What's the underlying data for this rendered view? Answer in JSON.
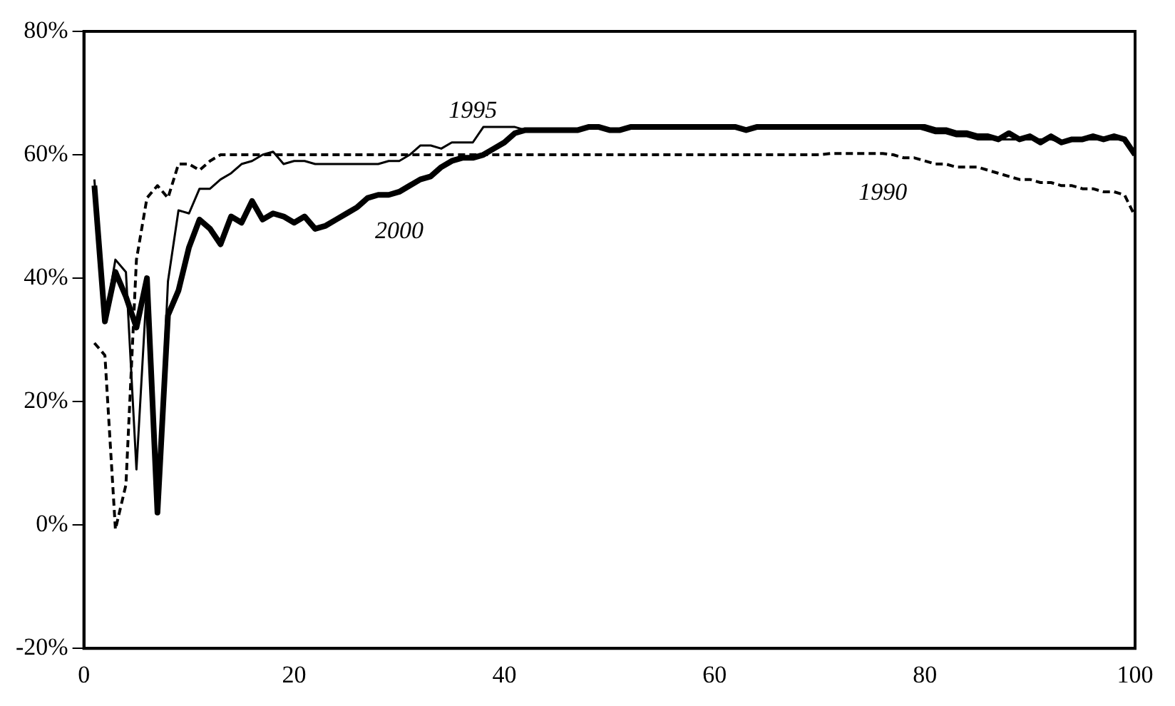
{
  "chart_data": {
    "type": "line",
    "x": [
      1,
      2,
      3,
      4,
      5,
      6,
      7,
      8,
      9,
      10,
      11,
      12,
      13,
      14,
      15,
      16,
      17,
      18,
      19,
      20,
      21,
      22,
      23,
      24,
      25,
      26,
      27,
      28,
      29,
      30,
      31,
      32,
      33,
      34,
      35,
      36,
      37,
      38,
      39,
      40,
      41,
      42,
      43,
      44,
      45,
      46,
      47,
      48,
      49,
      50,
      51,
      52,
      53,
      54,
      55,
      56,
      57,
      58,
      59,
      60,
      61,
      62,
      63,
      64,
      65,
      66,
      67,
      68,
      69,
      70,
      71,
      72,
      73,
      74,
      75,
      76,
      77,
      78,
      79,
      80,
      81,
      82,
      83,
      84,
      85,
      86,
      87,
      88,
      89,
      90,
      91,
      92,
      93,
      94,
      95,
      96,
      97,
      98,
      99,
      100
    ],
    "series": [
      {
        "name": "2000",
        "color": "#000000",
        "line_style": "solid",
        "values": [
          55,
          33,
          41,
          37,
          32,
          40,
          2,
          34,
          38,
          45,
          49.5,
          48,
          45.5,
          50,
          49,
          52.5,
          49.5,
          50.5,
          50,
          49,
          50,
          48,
          48.5,
          49.5,
          50.5,
          51.5,
          53,
          53.5,
          53.5,
          54,
          55,
          56,
          56.5,
          58,
          59,
          59.5,
          59.5,
          60,
          61,
          62,
          63.5,
          64,
          64,
          64,
          64,
          64,
          64,
          64.5,
          64.5,
          64,
          64,
          64.5,
          64.5,
          64.5,
          64.5,
          64.5,
          64.5,
          64.5,
          64.5,
          64.5,
          64.5,
          64.5,
          64,
          64.5,
          64.5,
          64.5,
          64.5,
          64.5,
          64.5,
          64.5,
          64.5,
          64.5,
          64.5,
          64.5,
          64.5,
          64.5,
          64.5,
          64.5,
          64.5,
          64.5,
          64,
          64,
          63.5,
          63.5,
          63,
          63,
          62.5,
          63.5,
          62.5,
          63,
          62,
          63,
          62,
          62.5,
          62.5,
          63,
          62.5,
          63,
          62.5,
          60
        ]
      },
      {
        "name": "1995",
        "color": "#000000",
        "line_style": "solid",
        "values": [
          56,
          33,
          43,
          41,
          9,
          39,
          2.5,
          39.5,
          51,
          50.5,
          54.5,
          54.5,
          56,
          57,
          58.5,
          59,
          60,
          60.5,
          58.5,
          59,
          59,
          58.5,
          58.5,
          58.5,
          58.5,
          58.5,
          58.5,
          58.5,
          59,
          59,
          60,
          61.5,
          61.5,
          61,
          62,
          62,
          62,
          64.5,
          64.5,
          64.5,
          64.5,
          64,
          64,
          64,
          64,
          64,
          64,
          64.5,
          64.5,
          64,
          64,
          64.5,
          64.5,
          64.5,
          64.5,
          64.5,
          64.5,
          64.5,
          64.5,
          64.5,
          64.5,
          64.5,
          64,
          64.5,
          64.5,
          64.5,
          64.5,
          64.5,
          64.5,
          64.5,
          64.5,
          64.5,
          64.5,
          64.5,
          64.5,
          64.5,
          64.5,
          64.5,
          64.5,
          64,
          63.5,
          63.5,
          63,
          63,
          62.5,
          62.5,
          62.5,
          62.5,
          62.5,
          62.5,
          62.5,
          62.5,
          62,
          62.5,
          62.5,
          62.5,
          62.5,
          62.5,
          62.5,
          60
        ]
      },
      {
        "name": "1990",
        "color": "#000000",
        "line_style": "dashed",
        "values": [
          29.5,
          27.5,
          -0.7,
          6.5,
          43,
          53,
          55,
          53,
          58.5,
          58.5,
          57.5,
          59,
          60,
          60,
          60,
          60,
          60,
          60,
          60,
          60,
          60,
          60,
          60,
          60,
          60,
          60,
          60,
          60,
          60,
          60,
          60,
          60,
          60,
          60,
          60,
          60,
          60,
          60,
          60,
          60,
          60,
          60,
          60,
          60,
          60,
          60,
          60,
          60,
          60,
          60,
          60,
          60,
          60,
          60,
          60,
          60,
          60,
          60,
          60,
          60,
          60,
          60,
          60,
          60,
          60,
          60,
          60,
          60,
          60,
          60,
          60.2,
          60.2,
          60.2,
          60.2,
          60.2,
          60.2,
          60,
          59.5,
          59.5,
          59,
          58.5,
          58.5,
          58,
          58,
          58,
          57.5,
          57,
          56.5,
          56,
          56,
          55.5,
          55.5,
          55,
          55,
          54.5,
          54.5,
          54,
          54,
          53.5,
          50
        ]
      }
    ],
    "xlim": [
      0,
      100
    ],
    "xticks": [
      0,
      20,
      40,
      60,
      80,
      100
    ],
    "ylim": [
      -20,
      80
    ],
    "yticks": [
      {
        "value": -20,
        "label": "-20%"
      },
      {
        "value": 0,
        "label": "0%"
      },
      {
        "value": 20,
        "label": "20%"
      },
      {
        "value": 40,
        "label": "40%"
      },
      {
        "value": 60,
        "label": "60%"
      },
      {
        "value": 80,
        "label": "80%"
      }
    ],
    "grid": false,
    "legend": false,
    "marker": "none"
  }
}
